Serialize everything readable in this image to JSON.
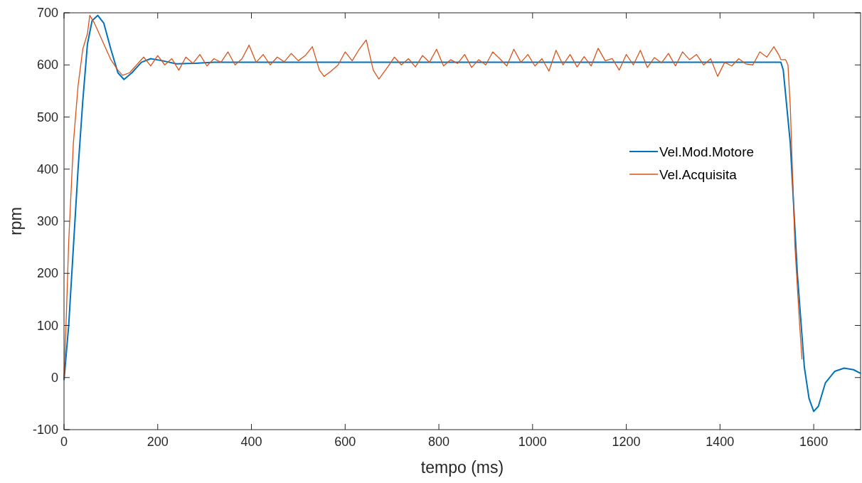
{
  "chart_data": {
    "type": "line",
    "xlabel": "tempo (ms)",
    "ylabel": "rpm",
    "xlim": [
      0,
      1700
    ],
    "ylim": [
      -100,
      700
    ],
    "xticks": [
      0,
      200,
      400,
      600,
      800,
      1000,
      1200,
      1400,
      1600
    ],
    "yticks": [
      -100,
      0,
      100,
      200,
      300,
      400,
      500,
      600,
      700
    ],
    "grid": false,
    "legend": "right",
    "line_style": "solid",
    "marker": "none",
    "series": [
      {
        "name": "Vel.Mod.Motore",
        "color": "#0072bd",
        "x": [
          0,
          10,
          20,
          30,
          40,
          50,
          60,
          72,
          85,
          100,
          115,
          128,
          145,
          165,
          185,
          210,
          240,
          280,
          320,
          1530,
          1535,
          1550,
          1565,
          1580,
          1590,
          1600,
          1610,
          1625,
          1645,
          1665,
          1685,
          1700
        ],
        "values": [
          -5,
          100,
          250,
          400,
          530,
          640,
          685,
          695,
          680,
          630,
          585,
          572,
          585,
          605,
          612,
          608,
          602,
          603,
          605,
          605,
          590,
          450,
          200,
          20,
          -40,
          -65,
          -55,
          -10,
          12,
          18,
          15,
          8
        ]
      },
      {
        "name": "Vel.Acquisita",
        "color": "#d95319",
        "x": [
          0,
          5,
          10,
          20,
          30,
          40,
          50,
          55,
          65,
          75,
          85,
          100,
          115,
          125,
          140,
          155,
          170,
          185,
          200,
          215,
          230,
          245,
          260,
          275,
          290,
          305,
          320,
          335,
          350,
          365,
          380,
          395,
          410,
          425,
          440,
          455,
          470,
          485,
          500,
          515,
          530,
          545,
          555,
          570,
          585,
          600,
          615,
          630,
          645,
          660,
          672,
          690,
          705,
          720,
          735,
          750,
          765,
          780,
          795,
          810,
          825,
          840,
          855,
          870,
          885,
          900,
          915,
          930,
          945,
          960,
          975,
          990,
          1005,
          1020,
          1035,
          1050,
          1065,
          1080,
          1095,
          1110,
          1125,
          1140,
          1155,
          1170,
          1185,
          1200,
          1215,
          1230,
          1245,
          1260,
          1275,
          1290,
          1305,
          1320,
          1335,
          1350,
          1365,
          1380,
          1395,
          1410,
          1425,
          1440,
          1455,
          1470,
          1485,
          1500,
          1515,
          1525,
          1530,
          1540,
          1545,
          1550,
          1560,
          1570,
          1575
        ],
        "values": [
          0,
          120,
          260,
          450,
          560,
          630,
          660,
          695,
          680,
          660,
          640,
          610,
          590,
          580,
          585,
          600,
          615,
          598,
          618,
          600,
          612,
          590,
          615,
          603,
          620,
          598,
          612,
          605,
          625,
          600,
          612,
          638,
          605,
          620,
          600,
          615,
          606,
          622,
          608,
          618,
          635,
          590,
          578,
          588,
          600,
          625,
          608,
          630,
          648,
          590,
          573,
          595,
          615,
          600,
          612,
          596,
          618,
          605,
          630,
          598,
          610,
          603,
          620,
          595,
          610,
          600,
          625,
          612,
          598,
          630,
          605,
          620,
          598,
          612,
          588,
          628,
          600,
          620,
          596,
          616,
          598,
          632,
          608,
          612,
          590,
          620,
          600,
          628,
          595,
          614,
          604,
          622,
          598,
          625,
          610,
          620,
          600,
          612,
          578,
          605,
          598,
          612,
          602,
          600,
          625,
          615,
          635,
          620,
          610,
          610,
          600,
          520,
          250,
          100,
          35
        ]
      }
    ]
  }
}
